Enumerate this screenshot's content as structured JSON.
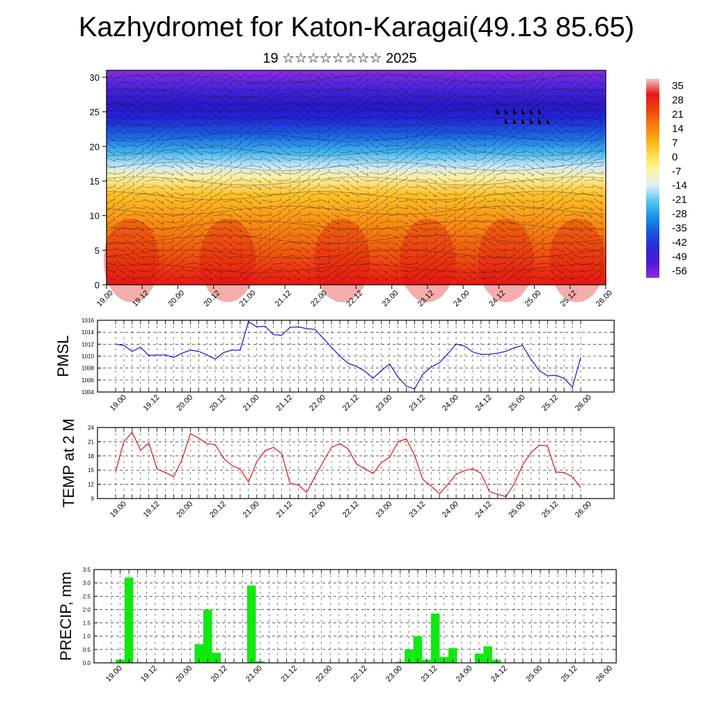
{
  "title": "Kazhydromet for Katon-Karagai(49.13 85.65)",
  "subtitle": "19 ☆☆☆☆☆☆☆☆ 2025",
  "time_ticks": [
    "19.00",
    "19.12",
    "20.00",
    "20.12",
    "21.00",
    "21.12",
    "22.00",
    "22.12",
    "23.00",
    "23.12",
    "24.00",
    "24.12",
    "25.00",
    "25.12",
    "26.00"
  ],
  "chart_data": [
    {
      "type": "heatmap",
      "name": "upper-air-temperature-cross-section",
      "y_ticks": [
        0,
        5,
        10,
        15,
        20,
        25,
        30
      ],
      "ylim": [
        0,
        31
      ],
      "colorbar": {
        "labels": [
          "35",
          "28",
          "21",
          "14",
          "7",
          "0",
          "-7",
          "-14",
          "-21",
          "-28",
          "-35",
          "-42",
          "-49",
          "-56"
        ],
        "colors": [
          "#f2c7c9",
          "#e8181a",
          "#f04010",
          "#f57a10",
          "#fbad12",
          "#fde050",
          "#fdf7a8",
          "#d8eef8",
          "#56c6f0",
          "#1894e8",
          "#1858e0",
          "#2c2ad8",
          "#4c18d8",
          "#8a2ce0"
        ]
      }
    },
    {
      "type": "line",
      "name": "PMSL",
      "ylabel": "PMSL",
      "y_ticks": [
        1004,
        1006,
        1008,
        1010,
        1012,
        1014,
        1016
      ],
      "ylim": [
        1004,
        1016
      ],
      "color": "#1010e0",
      "x": [
        0,
        1,
        2,
        3,
        4,
        5,
        6,
        7,
        8,
        9,
        10,
        11,
        12,
        13,
        14,
        15,
        16,
        17,
        18,
        19,
        20,
        21,
        22,
        23,
        24,
        25,
        26,
        27,
        28,
        29,
        30,
        31,
        32,
        33,
        34,
        35,
        36,
        37,
        38,
        39,
        40,
        41,
        42,
        43,
        44,
        45,
        46,
        47,
        48,
        49,
        50,
        51,
        52,
        53,
        54,
        55,
        56
      ],
      "values": [
        1012.0,
        1011.8,
        1010.8,
        1011.5,
        1010.1,
        1010.2,
        1010.2,
        1009.8,
        1010.5,
        1011.0,
        1010.8,
        1010.2,
        1009.5,
        1010.6,
        1011.0,
        1011.0,
        1015.8,
        1014.9,
        1015.0,
        1013.6,
        1013.5,
        1014.8,
        1014.9,
        1014.6,
        1014.5,
        1013.0,
        1011.5,
        1010.0,
        1008.8,
        1008.3,
        1007.5,
        1006.3,
        1007.6,
        1008.7,
        1006.5,
        1005.0,
        1004.5,
        1007.0,
        1008.2,
        1008.9,
        1010.4,
        1012.0,
        1011.7,
        1010.7,
        1010.3,
        1010.3,
        1010.5,
        1010.8,
        1011.4,
        1011.8,
        1009.5,
        1007.6,
        1006.7,
        1006.8,
        1006.3,
        1004.8,
        1009.8
      ]
    },
    {
      "type": "line",
      "name": "TEMP at 2 M",
      "ylabel": "TEMP at 2 M",
      "y_ticks": [
        9,
        12,
        15,
        18,
        21,
        24
      ],
      "ylim": [
        9,
        24
      ],
      "color": "#e01010",
      "x": [
        0,
        1,
        2,
        3,
        4,
        5,
        6,
        7,
        8,
        9,
        10,
        11,
        12,
        13,
        14,
        15,
        16,
        17,
        18,
        19,
        20,
        21,
        22,
        23,
        24,
        25,
        26,
        27,
        28,
        29,
        30,
        31,
        32,
        33,
        34,
        35,
        36,
        37,
        38,
        39,
        40,
        41,
        42,
        43,
        44,
        45,
        46,
        47,
        48,
        49,
        50,
        51,
        52,
        53,
        54,
        55,
        56
      ],
      "values": [
        14.7,
        21.0,
        23.0,
        19.2,
        20.7,
        15.2,
        14.5,
        13.6,
        17.2,
        22.7,
        21.8,
        20.6,
        20.4,
        17.5,
        16.0,
        15.2,
        12.5,
        16.8,
        19.1,
        19.8,
        18.5,
        12.2,
        11.9,
        10.3,
        13.6,
        16.8,
        19.8,
        20.6,
        19.5,
        16.3,
        15.3,
        14.3,
        16.6,
        17.7,
        21.0,
        21.6,
        18.1,
        13.0,
        11.6,
        10.0,
        12.0,
        14.1,
        14.9,
        15.3,
        14.3,
        10.5,
        9.9,
        9.4,
        12.1,
        16.1,
        18.6,
        20.3,
        20.1,
        14.6,
        14.5,
        13.6,
        11.3
      ]
    },
    {
      "type": "bar",
      "name": "PRECIP, mm",
      "ylabel": "PRECIP, mm",
      "y_ticks": [
        "0.0",
        "0.5",
        "1.0",
        "1.5",
        "2.0",
        "2.5",
        "3.0",
        "3.5"
      ],
      "ylim": [
        0,
        3.5
      ],
      "color": "#11e811",
      "x": [
        1,
        2,
        3,
        10,
        11,
        12,
        16,
        17,
        33,
        34,
        35,
        36,
        37,
        38,
        39,
        42,
        43,
        44
      ],
      "values": [
        0.12,
        3.2,
        0.02,
        0.7,
        2.0,
        0.38,
        2.9,
        0.06,
        0.04,
        0.5,
        1.0,
        0.12,
        1.85,
        0.22,
        0.55,
        0.35,
        0.62,
        0.12
      ]
    }
  ]
}
